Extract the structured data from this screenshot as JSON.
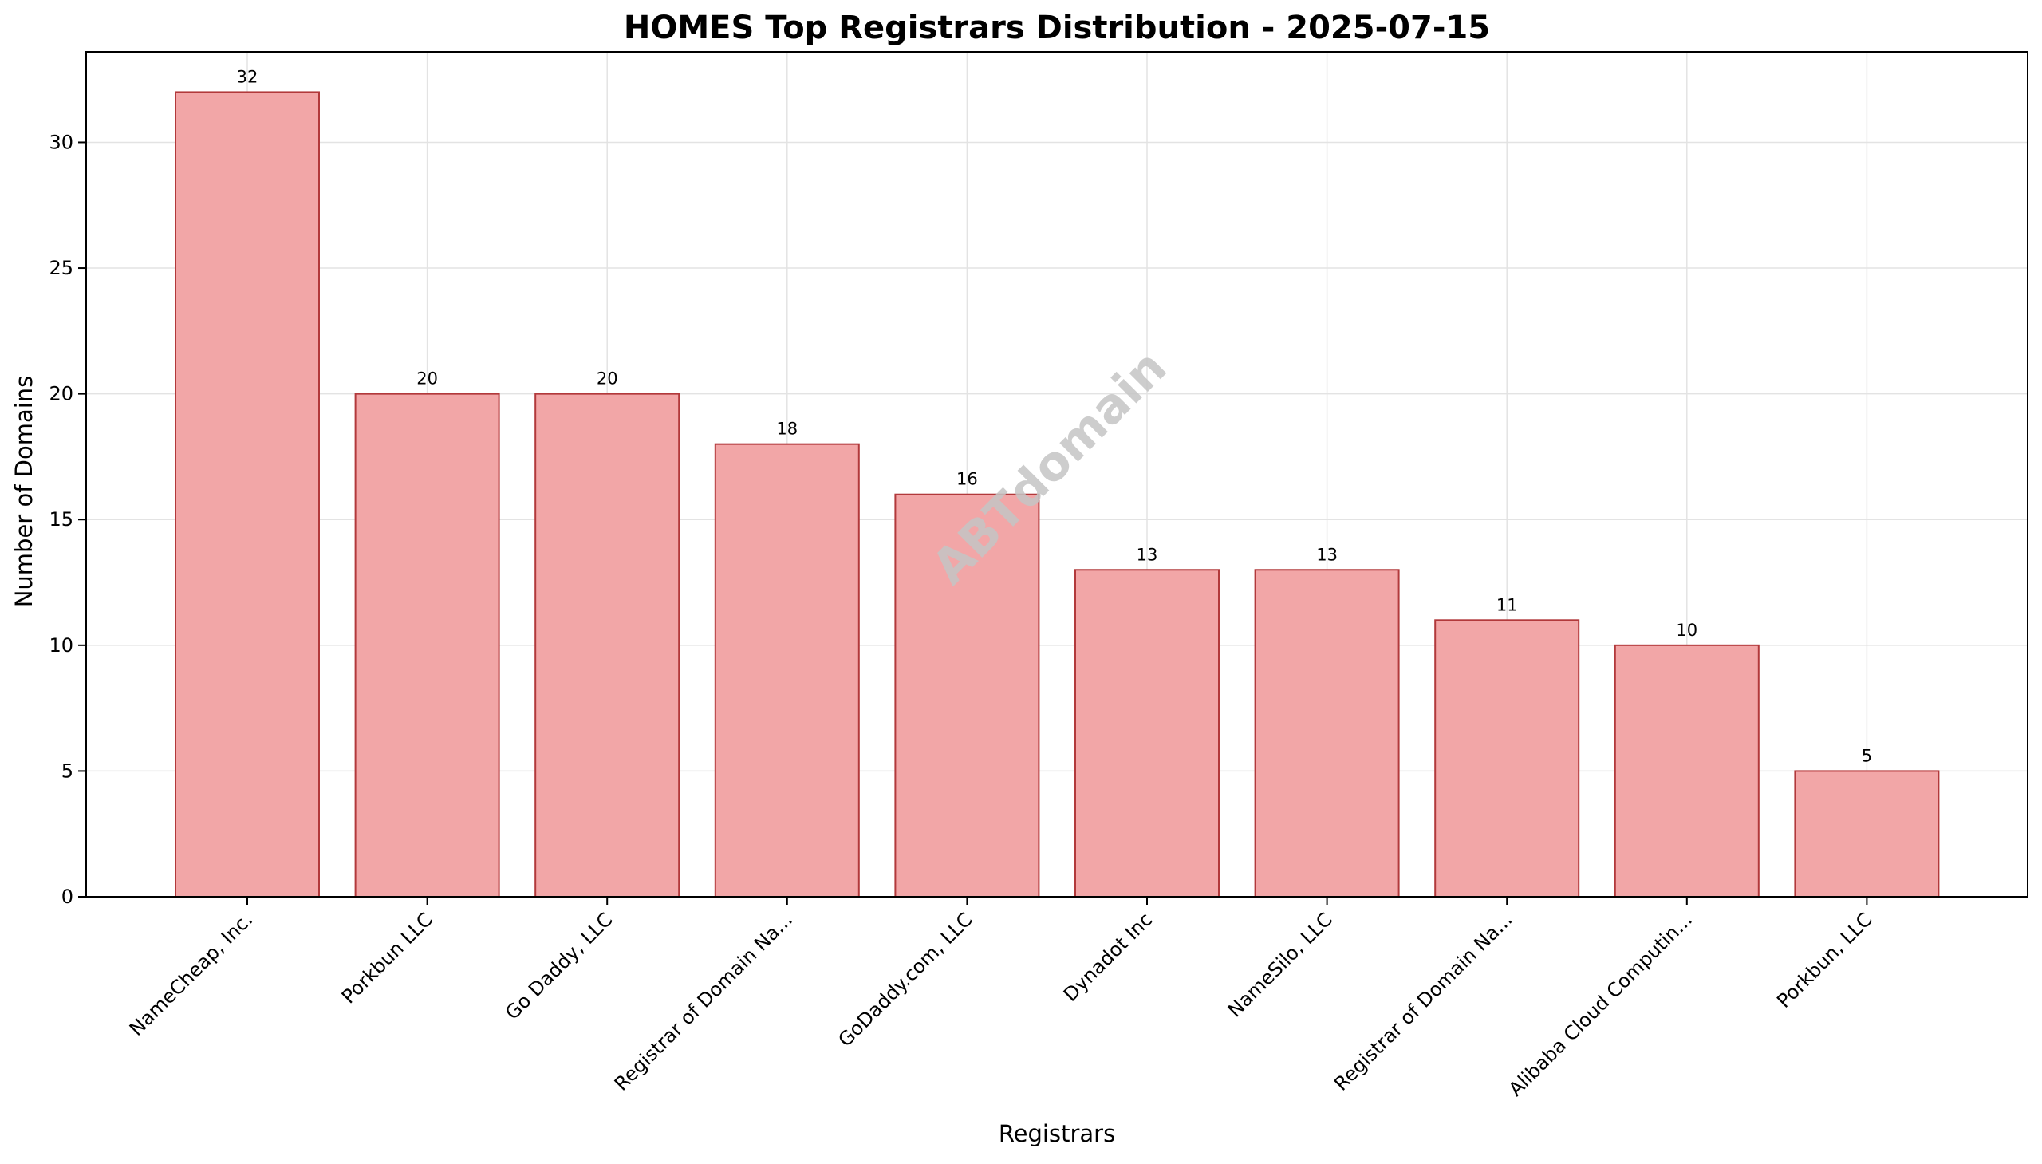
{
  "chart_data": {
    "type": "bar",
    "title": "HOMES Top Registrars Distribution - 2025-07-15",
    "xlabel": "Registrars",
    "ylabel": "Number of Domains",
    "categories": [
      "NameCheap, Inc.",
      "Porkbun LLC",
      "Go Daddy, LLC",
      "Registrar of Domain Na...",
      "GoDaddy.com, LLC",
      "Dynadot Inc",
      "NameSilo, LLC",
      "Registrar of Domain Na...",
      "Alibaba Cloud Computin...",
      "Porkbun, LLC"
    ],
    "values": [
      32,
      20,
      20,
      18,
      16,
      13,
      13,
      11,
      10,
      5
    ],
    "data_labels": [
      "32",
      "20",
      "20",
      "18",
      "16",
      "13",
      "13",
      "11",
      "10",
      "5"
    ],
    "y_ticks": [
      0,
      5,
      10,
      15,
      20,
      25,
      30
    ],
    "y_tick_labels": [
      "0",
      "5",
      "10",
      "15",
      "20",
      "25",
      "30"
    ],
    "ylim": [
      0,
      33.6
    ],
    "grid": true,
    "legend": "none",
    "watermark": "ABTdomain",
    "colors": {
      "bar_fill": "#f2a6a7",
      "bar_edge": "#b2393b",
      "grid": "#e3e3e3",
      "axis": "#000000",
      "watermark": "#c4c4c4"
    }
  }
}
